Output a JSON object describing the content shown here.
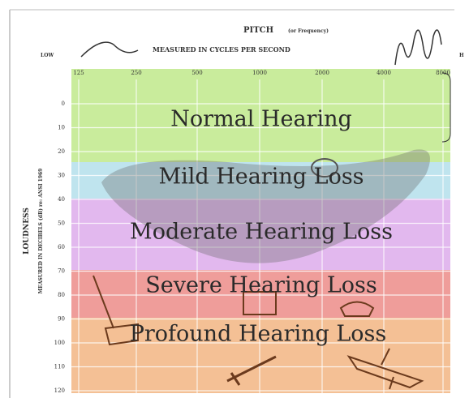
{
  "header": {
    "title": "PITCH",
    "title_note": "(or Frequency)",
    "low": "LOW",
    "subtitle": "MEASURED IN CYCLES PER SECOND",
    "high": "H"
  },
  "x_axis": {
    "labels": [
      "125",
      "250",
      "500",
      "1000",
      "2000",
      "4000",
      "8000"
    ]
  },
  "y_axis": {
    "title": "LOUDNESS",
    "subtitle": "MEASURED IN DECIBELS (dB) re: ANSI 1969",
    "labels": [
      "0",
      "10",
      "20",
      "30",
      "40",
      "50",
      "60",
      "70",
      "80",
      "90",
      "100",
      "110",
      "120"
    ]
  },
  "bands": [
    {
      "label": "Normal Hearing"
    },
    {
      "label": "Mild Hearing Loss"
    },
    {
      "label": "Moderate Hearing Loss"
    },
    {
      "label": "Severe Hearing Loss"
    },
    {
      "label": "Profound Hearing Loss"
    }
  ]
}
